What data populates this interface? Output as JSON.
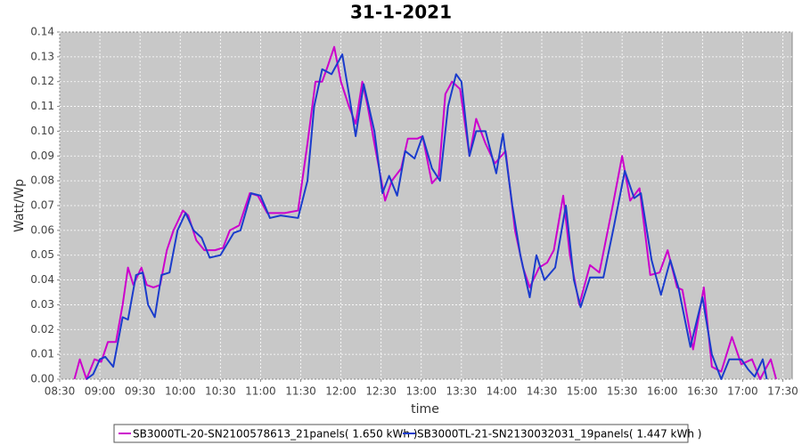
{
  "chart_data": {
    "type": "line",
    "title": "31-1-2021",
    "x_label": "time",
    "y_label": "Watt/Wp",
    "xlim": [
      "08:30",
      "17:37"
    ],
    "xticks": [
      "08:30",
      "09:00",
      "09:30",
      "10:00",
      "10:30",
      "11:00",
      "11:30",
      "12:00",
      "12:30",
      "13:00",
      "13:30",
      "14:00",
      "14:30",
      "15:00",
      "15:30",
      "16:00",
      "16:30",
      "17:00",
      "17:30"
    ],
    "ylim": [
      0,
      0.14
    ],
    "yticks": [
      {
        "value": 0,
        "label": "0.00"
      },
      0.01,
      0.02,
      0.03,
      0.04,
      0.05,
      0.06,
      0.07,
      0.08,
      0.09,
      {
        "value": 0.1,
        "label": "0.10"
      },
      0.11,
      0.12,
      0.13,
      0.14
    ],
    "grid": true,
    "legend": "bottom",
    "series": [
      {
        "name": "SB3000TL-20-SN2100578613_21panels( 1.650 kWh )",
        "color": "#cc00cc",
        "x": [
          "08:41",
          "08:45",
          "08:50",
          "08:56",
          "09:01",
          "09:06",
          "09:12",
          "09:17",
          "09:21",
          "09:25",
          "09:31",
          "09:35",
          "09:40",
          "09:45",
          "09:50",
          "09:55",
          "10:02",
          "10:06",
          "10:12",
          "10:18",
          "10:26",
          "10:32",
          "10:37",
          "10:44",
          "10:52",
          "10:58",
          "11:05",
          "11:18",
          "11:28",
          "11:35",
          "11:41",
          "11:46",
          "11:50",
          "11:55",
          "12:00",
          "12:06",
          "12:11",
          "12:16",
          "12:20",
          "12:25",
          "12:33",
          "12:38",
          "12:45",
          "12:50",
          "12:57",
          "13:01",
          "13:08",
          "13:13",
          "13:18",
          "13:23",
          "13:29",
          "13:36",
          "13:41",
          "13:48",
          "13:55",
          "14:03",
          "14:10",
          "14:16",
          "14:21",
          "14:28",
          "14:34",
          "14:39",
          "14:46",
          "14:51",
          "14:58",
          "15:06",
          "15:13",
          "15:23",
          "15:30",
          "15:36",
          "15:43",
          "15:51",
          "15:58",
          "16:04",
          "16:11",
          "16:15",
          "16:23",
          "16:31",
          "16:37",
          "16:44",
          "16:52",
          "16:59",
          "17:07",
          "17:13",
          "17:21",
          "17:25"
        ],
        "values": [
          0.0,
          0.008,
          0.0,
          0.008,
          0.007,
          0.015,
          0.015,
          0.03,
          0.045,
          0.038,
          0.045,
          0.038,
          0.037,
          0.038,
          0.052,
          0.06,
          0.068,
          0.066,
          0.056,
          0.052,
          0.052,
          0.053,
          0.06,
          0.062,
          0.075,
          0.074,
          0.067,
          0.067,
          0.068,
          0.095,
          0.12,
          0.12,
          0.126,
          0.134,
          0.12,
          0.11,
          0.103,
          0.12,
          0.11,
          0.095,
          0.072,
          0.08,
          0.085,
          0.097,
          0.097,
          0.098,
          0.079,
          0.082,
          0.115,
          0.12,
          0.117,
          0.09,
          0.105,
          0.095,
          0.087,
          0.092,
          0.06,
          0.045,
          0.037,
          0.045,
          0.047,
          0.052,
          0.074,
          0.05,
          0.03,
          0.046,
          0.043,
          0.07,
          0.09,
          0.072,
          0.077,
          0.042,
          0.043,
          0.052,
          0.037,
          0.036,
          0.012,
          0.037,
          0.005,
          0.003,
          0.017,
          0.006,
          0.008,
          0.0,
          0.008,
          0.0
        ]
      },
      {
        "name": "SB3000TL-21-SN2130032031_19panels( 1.447 kWh )",
        "color": "#1a3ccc",
        "x": [
          "08:50",
          "08:55",
          "09:00",
          "09:04",
          "09:10",
          "09:17",
          "09:21",
          "09:27",
          "09:32",
          "09:36",
          "09:41",
          "09:46",
          "09:52",
          "09:58",
          "10:04",
          "10:10",
          "10:16",
          "10:22",
          "10:30",
          "10:40",
          "10:45",
          "10:53",
          "11:00",
          "11:07",
          "11:15",
          "11:28",
          "11:35",
          "11:40",
          "11:46",
          "11:53",
          "12:01",
          "12:06",
          "12:11",
          "12:17",
          "12:25",
          "12:31",
          "12:36",
          "12:42",
          "12:48",
          "12:55",
          "13:01",
          "13:08",
          "13:14",
          "13:20",
          "13:26",
          "13:30",
          "13:36",
          "13:41",
          "13:48",
          "13:56",
          "14:01",
          "14:08",
          "14:14",
          "14:21",
          "14:26",
          "14:32",
          "14:40",
          "14:48",
          "14:54",
          "14:59",
          "15:06",
          "15:16",
          "15:24",
          "15:32",
          "15:39",
          "15:44",
          "15:52",
          "15:59",
          "16:06",
          "16:12",
          "16:21",
          "16:30",
          "16:37",
          "16:44",
          "16:50",
          "16:59",
          "17:04",
          "17:09",
          "17:15",
          "17:18"
        ],
        "values": [
          0.0,
          0.002,
          0.008,
          0.009,
          0.005,
          0.025,
          0.024,
          0.042,
          0.043,
          0.03,
          0.025,
          0.042,
          0.043,
          0.06,
          0.067,
          0.06,
          0.057,
          0.049,
          0.05,
          0.059,
          0.06,
          0.075,
          0.074,
          0.065,
          0.066,
          0.065,
          0.08,
          0.11,
          0.125,
          0.123,
          0.131,
          0.115,
          0.098,
          0.119,
          0.1,
          0.075,
          0.082,
          0.074,
          0.092,
          0.089,
          0.098,
          0.085,
          0.08,
          0.11,
          0.123,
          0.12,
          0.09,
          0.1,
          0.1,
          0.083,
          0.099,
          0.07,
          0.05,
          0.033,
          0.05,
          0.04,
          0.045,
          0.07,
          0.04,
          0.029,
          0.041,
          0.041,
          0.062,
          0.084,
          0.073,
          0.075,
          0.048,
          0.034,
          0.048,
          0.037,
          0.013,
          0.033,
          0.01,
          0.0,
          0.008,
          0.008,
          0.004,
          0.001,
          0.008,
          0.0
        ]
      }
    ]
  }
}
